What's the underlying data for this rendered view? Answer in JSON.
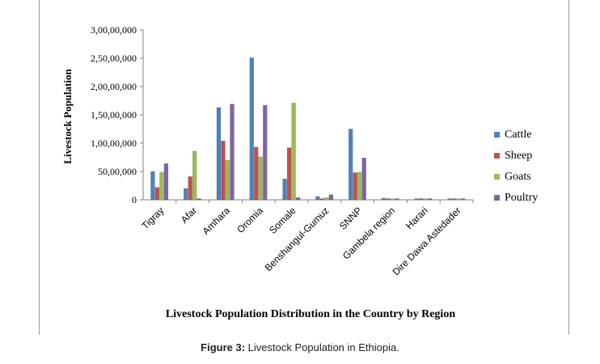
{
  "figure": {
    "caption_label": "Figure 3:",
    "caption_text": " Livestock Population in Ethiopia."
  },
  "chart_data": {
    "type": "bar",
    "title": "",
    "xlabel": "Livestock Population Distribution in the Country  by Region",
    "ylabel": "Livestock Population",
    "ylim": [
      0,
      30000000
    ],
    "yticks": [
      "0",
      "50,00,000",
      "1,00,00,000",
      "1,50,00,000",
      "2,00,00,000",
      "2,50,00,000",
      "3,00,00,000"
    ],
    "ytick_values": [
      0,
      5000000,
      10000000,
      15000000,
      20000000,
      25000000,
      30000000
    ],
    "grid": false,
    "legend_position": "right",
    "categories": [
      "Tigray",
      "Afar",
      "Amhara",
      "Oromia",
      "Somale",
      "Benshangul-Gumuz",
      "SNNP",
      "Gambela region",
      "Harari",
      "Dire Dawa Astedader"
    ],
    "series": [
      {
        "name": "Cattle",
        "color": "#4F81BD",
        "values": [
          5000000,
          2000000,
          16300000,
          25100000,
          3700000,
          600000,
          12500000,
          300000,
          100000,
          200000
        ]
      },
      {
        "name": "Sheep",
        "color": "#C0504D",
        "values": [
          2200000,
          4100000,
          10400000,
          9300000,
          9200000,
          200000,
          4800000,
          100000,
          100000,
          200000
        ]
      },
      {
        "name": "Goats",
        "color": "#9BBB59",
        "values": [
          4900000,
          8600000,
          7000000,
          7600000,
          17100000,
          400000,
          4900000,
          100000,
          100000,
          200000
        ]
      },
      {
        "name": "Poultry",
        "color": "#8064A2",
        "values": [
          6400000,
          100000,
          16900000,
          16700000,
          400000,
          900000,
          7400000,
          200000,
          200000,
          200000
        ]
      }
    ]
  }
}
